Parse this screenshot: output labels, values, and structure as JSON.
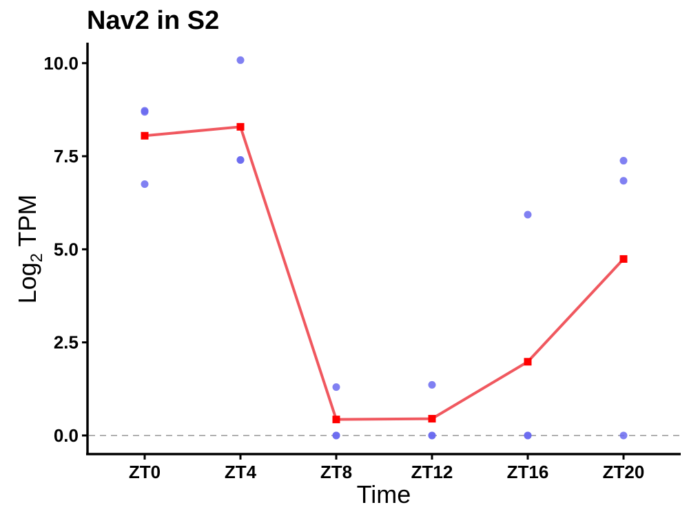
{
  "chart_data": {
    "type": "line",
    "title": "Nav2 in S2",
    "xlabel": "Time",
    "ylabel": {
      "base": "Log",
      "subscript": "2",
      "rest": " TPM"
    },
    "categories": [
      "ZT0",
      "ZT4",
      "ZT8",
      "ZT12",
      "ZT16",
      "ZT20"
    ],
    "ylim": [
      -0.5,
      10.55
    ],
    "yticks": [
      0.0,
      2.5,
      5.0,
      7.5,
      10.0
    ],
    "ytick_labels": [
      "0.0",
      "2.5",
      "5.0",
      "7.5",
      "10.0"
    ],
    "reference_line": 0,
    "series": [
      {
        "kind": "mean-line",
        "values": [
          8.05,
          8.29,
          0.43,
          0.45,
          1.98,
          4.74
        ]
      },
      {
        "kind": "replicate-points",
        "points": [
          {
            "x": "ZT0",
            "y": 8.72
          },
          {
            "x": "ZT0",
            "y": 8.69
          },
          {
            "x": "ZT0",
            "y": 6.75
          },
          {
            "x": "ZT4",
            "y": 10.08
          },
          {
            "x": "ZT4",
            "y": 7.4
          },
          {
            "x": "ZT4",
            "y": 7.4
          },
          {
            "x": "ZT8",
            "y": 1.3
          },
          {
            "x": "ZT8",
            "y": 0.0
          },
          {
            "x": "ZT8",
            "y": 0.0
          },
          {
            "x": "ZT12",
            "y": 1.36
          },
          {
            "x": "ZT12",
            "y": 0.0
          },
          {
            "x": "ZT12",
            "y": 0.0
          },
          {
            "x": "ZT16",
            "y": 5.93
          },
          {
            "x": "ZT16",
            "y": 0.0
          },
          {
            "x": "ZT16",
            "y": 0.0
          },
          {
            "x": "ZT20",
            "y": 7.38
          },
          {
            "x": "ZT20",
            "y": 6.84
          },
          {
            "x": "ZT20",
            "y": 0.0
          }
        ]
      }
    ],
    "grid": false,
    "legend": "none",
    "colors": {
      "line": "#f0585f",
      "mean_marker": "#ff0000",
      "points": "#6a6af0",
      "reference_line": "#b0b0b0",
      "axis": "#000000"
    }
  }
}
